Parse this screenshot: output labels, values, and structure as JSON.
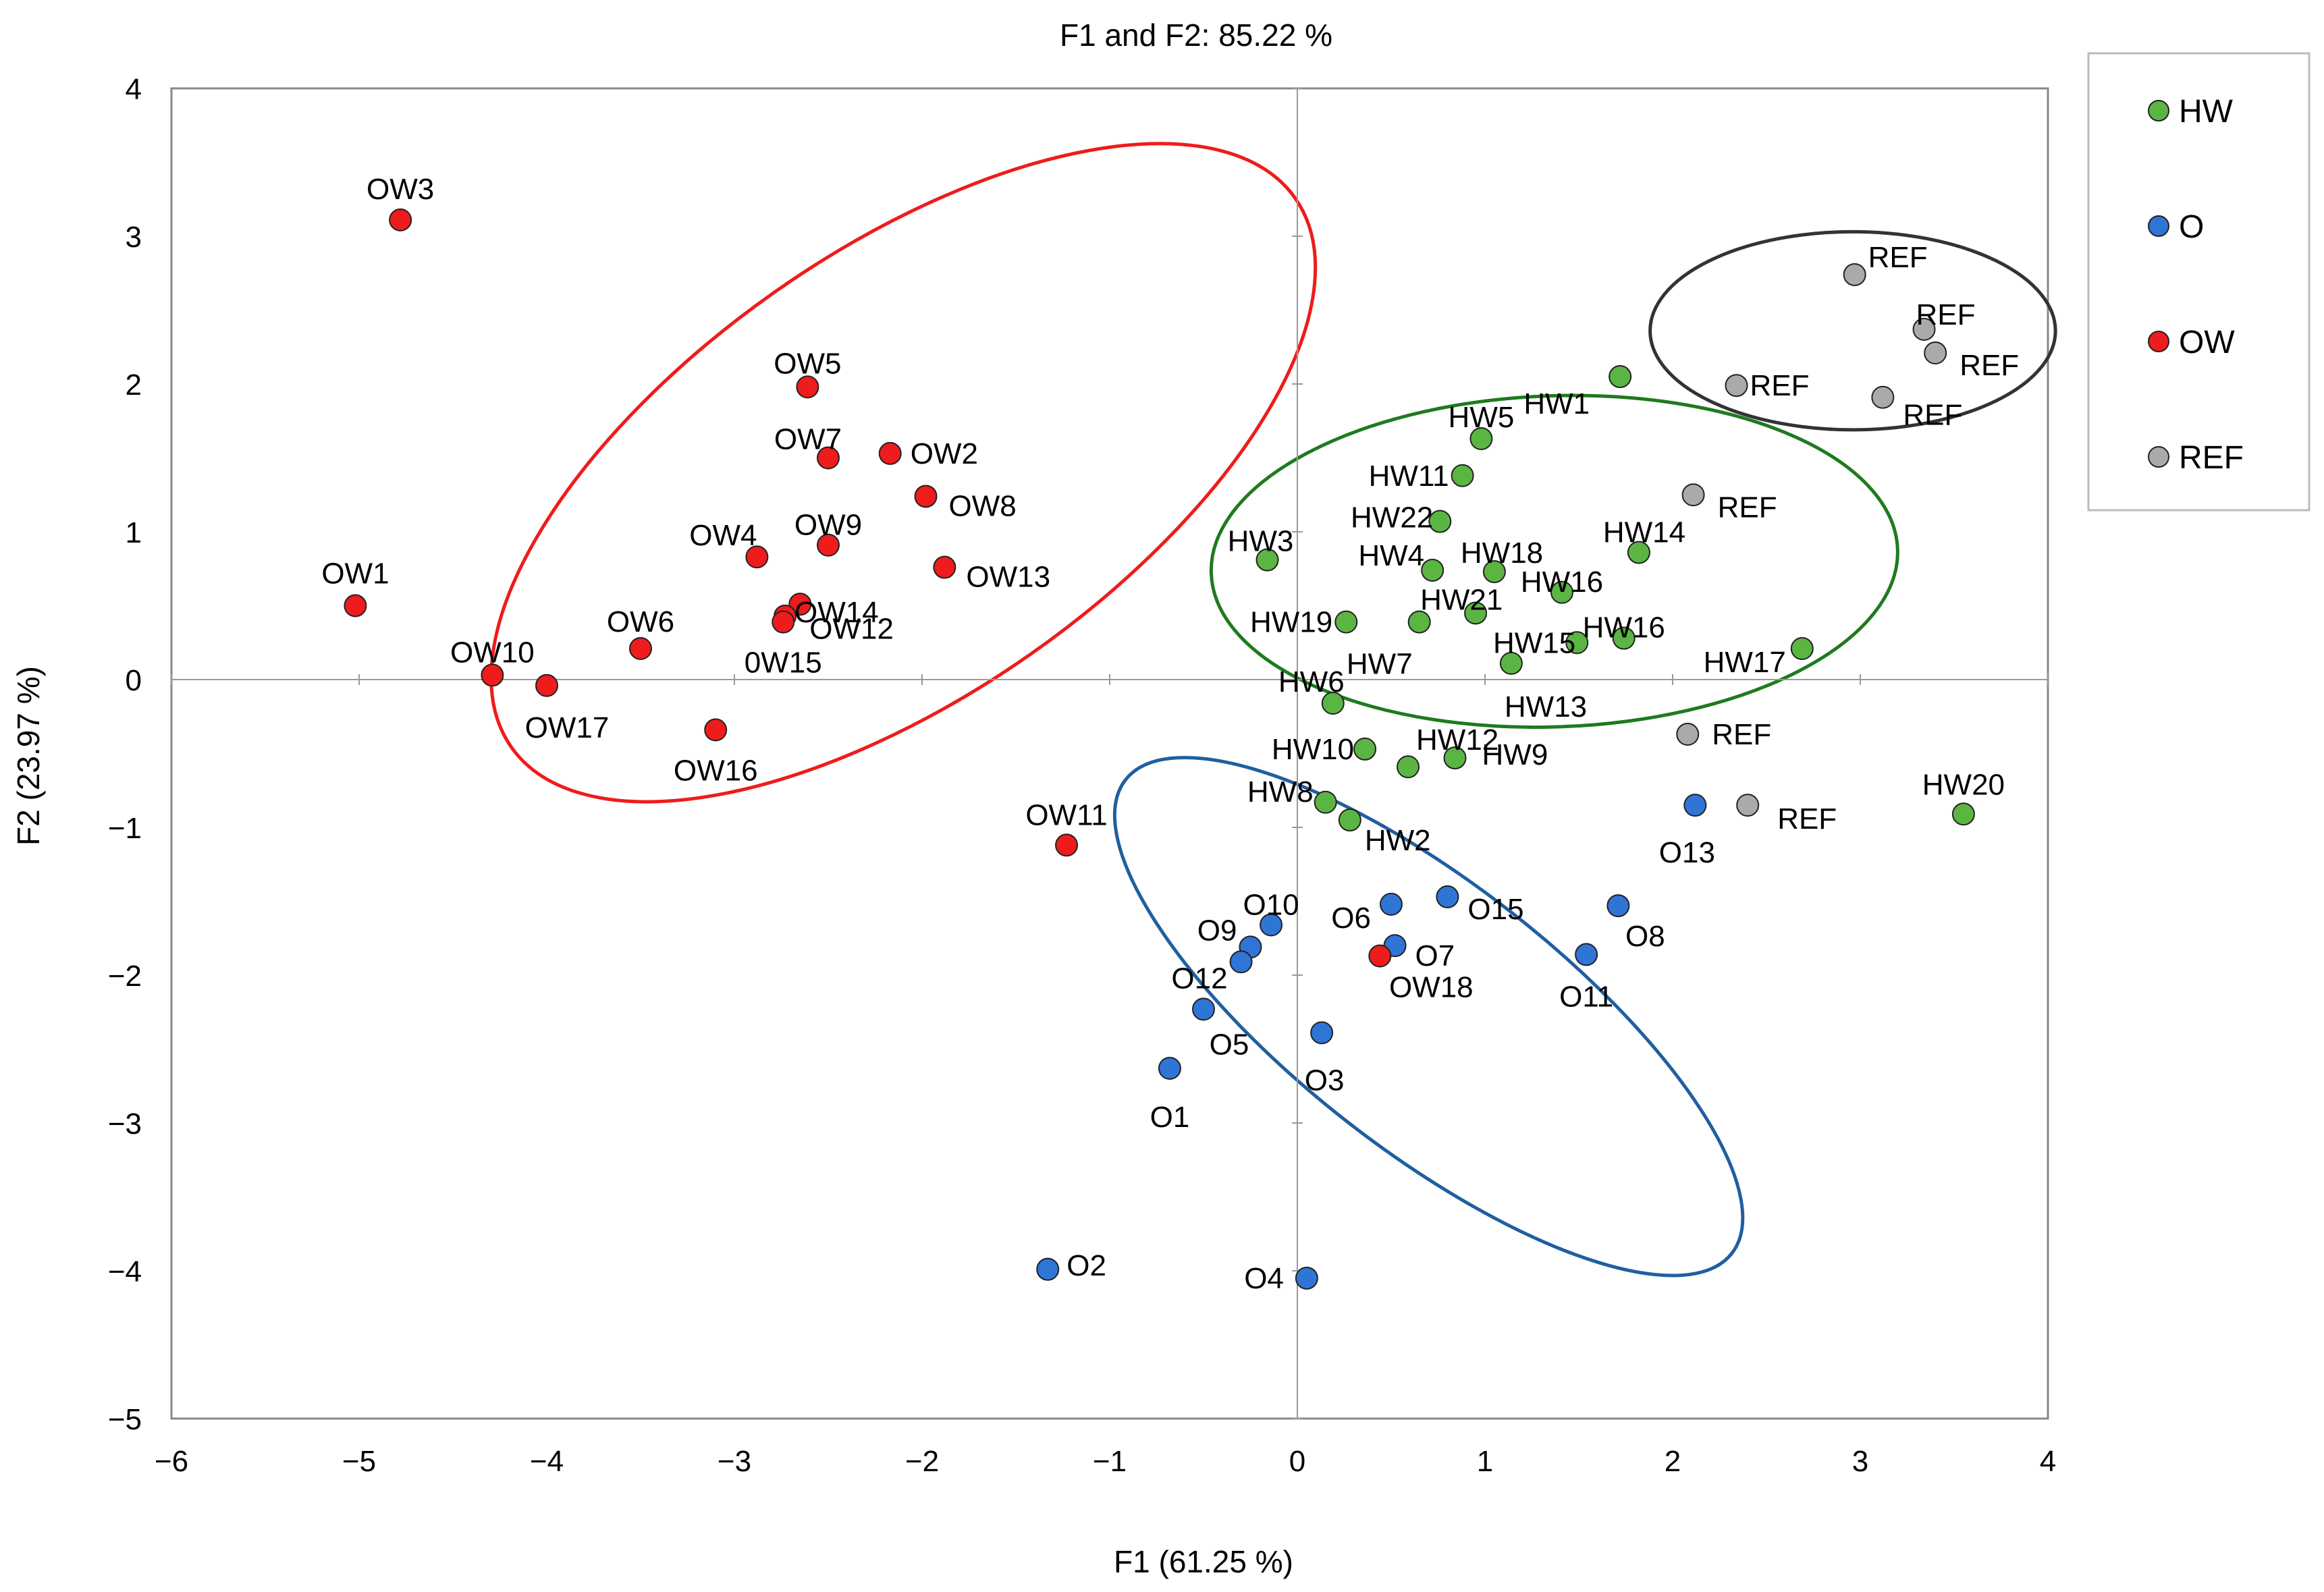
{
  "chart_data": {
    "type": "scatter",
    "title": "F1 and F2: 85.22 %",
    "xlabel": "F1 (61.25 %)",
    "ylabel": "F2 (23.97 %)",
    "xlim": [
      -6,
      4
    ],
    "ylim": [
      -5,
      4
    ],
    "xticks": [
      -6,
      -5,
      -4,
      -3,
      -2,
      -1,
      0,
      1,
      2,
      3,
      4
    ],
    "yticks": [
      -5,
      -4,
      -3,
      -2,
      -1,
      0,
      1,
      2,
      3,
      4
    ],
    "xtick_labels": [
      "−6",
      "−5",
      "−4",
      "−3",
      "−2",
      "−1",
      "0",
      "1",
      "2",
      "3",
      "4"
    ],
    "ytick_labels": [
      "−5",
      "−4",
      "−3",
      "−2",
      "−1",
      "0",
      "1",
      "2",
      "3",
      "4"
    ],
    "grid": false,
    "legend_position": "right",
    "series": [
      {
        "name": "HW",
        "color": "#5BB543",
        "points": [
          {
            "label": "HW1",
            "x": 1.72,
            "y": 2.05
          },
          {
            "label": "HW2",
            "x": 0.28,
            "y": -0.95
          },
          {
            "label": "HW3",
            "x": -0.16,
            "y": 0.81
          },
          {
            "label": "HW4",
            "x": 0.72,
            "y": 0.74
          },
          {
            "label": "HW5",
            "x": 0.98,
            "y": 1.63
          },
          {
            "label": "HW6",
            "x": 0.19,
            "y": -0.16
          },
          {
            "label": "HW7",
            "x": 0.65,
            "y": 0.39
          },
          {
            "label": "HW8",
            "x": 0.15,
            "y": -0.83
          },
          {
            "label": "HW9",
            "x": 0.84,
            "y": -0.53
          },
          {
            "label": "HW10",
            "x": 0.36,
            "y": -0.47
          },
          {
            "label": "HW11",
            "x": 0.88,
            "y": 1.38
          },
          {
            "label": "HW12",
            "x": 0.59,
            "y": -0.59
          },
          {
            "label": "HW13",
            "x": 1.14,
            "y": 0.11
          },
          {
            "label": "HW14",
            "x": 1.82,
            "y": 0.86
          },
          {
            "label": "HW15",
            "x": 1.49,
            "y": 0.25
          },
          {
            "label": "HW16",
            "x": 1.41,
            "y": 0.59
          },
          {
            "label": "HW16",
            "x": 1.74,
            "y": 0.28
          },
          {
            "label": "HW17",
            "x": 2.69,
            "y": 0.21
          },
          {
            "label": "HW18",
            "x": 1.05,
            "y": 0.73
          },
          {
            "label": "HW19",
            "x": 0.26,
            "y": 0.39
          },
          {
            "label": "HW20",
            "x": 3.55,
            "y": -0.91
          },
          {
            "label": "HW21",
            "x": 0.95,
            "y": 0.45
          },
          {
            "label": "HW22",
            "x": 0.76,
            "y": 1.07
          }
        ]
      },
      {
        "name": "O",
        "color": "#2E75D6",
        "points": [
          {
            "label": "O1",
            "x": -0.68,
            "y": -2.63
          },
          {
            "label": "O2",
            "x": -1.33,
            "y": -3.99
          },
          {
            "label": "O3",
            "x": 0.13,
            "y": -2.39
          },
          {
            "label": "O4",
            "x": 0.05,
            "y": -4.05
          },
          {
            "label": "O5",
            "x": -0.5,
            "y": -2.23
          },
          {
            "label": "O6",
            "x": 0.5,
            "y": -1.52
          },
          {
            "label": "O7",
            "x": 0.52,
            "y": -1.8
          },
          {
            "label": "O8",
            "x": 1.71,
            "y": -1.53
          },
          {
            "label": "O9",
            "x": -0.25,
            "y": -1.81
          },
          {
            "label": "O10",
            "x": -0.14,
            "y": -1.66
          },
          {
            "label": "O11",
            "x": 1.54,
            "y": -1.86
          },
          {
            "label": "O12",
            "x": -0.3,
            "y": -1.91
          },
          {
            "label": "O13",
            "x": 2.12,
            "y": -0.85
          },
          {
            "label": "O15",
            "x": 0.8,
            "y": -1.47
          }
        ]
      },
      {
        "name": "OW",
        "color": "#EE1C1C",
        "points": [
          {
            "label": "OW1",
            "x": -5.02,
            "y": 0.5
          },
          {
            "label": "OW2",
            "x": -2.17,
            "y": 1.53
          },
          {
            "label": "OW3",
            "x": -4.78,
            "y": 3.11
          },
          {
            "label": "OW4",
            "x": -2.88,
            "y": 0.83
          },
          {
            "label": "OW5",
            "x": -2.61,
            "y": 1.98
          },
          {
            "label": "OW6",
            "x": -3.5,
            "y": 0.21
          },
          {
            "label": "OW7",
            "x": -2.5,
            "y": 1.5
          },
          {
            "label": "OW8",
            "x": -1.98,
            "y": 1.24
          },
          {
            "label": "OW9",
            "x": -2.5,
            "y": 0.91
          },
          {
            "label": "OW10",
            "x": -4.29,
            "y": 0.03
          },
          {
            "label": "OW11",
            "x": -1.23,
            "y": -1.12
          },
          {
            "label": "OW12",
            "x": -2.65,
            "y": 0.51
          },
          {
            "label": "OW13",
            "x": -1.88,
            "y": 0.76
          },
          {
            "label": "OW14",
            "x": -2.73,
            "y": 0.43
          },
          {
            "label": "0W15",
            "x": -2.74,
            "y": 0.39
          },
          {
            "label": "OW16",
            "x": -3.1,
            "y": -0.34
          },
          {
            "label": "OW17",
            "x": -4.0,
            "y": -0.04
          },
          {
            "label": "OW18",
            "x": 0.44,
            "y": -1.87
          }
        ]
      },
      {
        "name": "REF",
        "color": "#AAAAAA",
        "points": [
          {
            "label": "REF",
            "x": 2.97,
            "y": 2.74
          },
          {
            "label": "REF",
            "x": 3.34,
            "y": 2.37
          },
          {
            "label": "REF",
            "x": 3.4,
            "y": 2.21
          },
          {
            "label": "REF",
            "x": 2.34,
            "y": 1.99
          },
          {
            "label": "REF",
            "x": 3.12,
            "y": 1.91
          },
          {
            "label": "REF",
            "x": 2.11,
            "y": 1.25
          },
          {
            "label": "REF",
            "x": 2.08,
            "y": -0.37
          },
          {
            "label": "REF",
            "x": 2.4,
            "y": -0.85
          }
        ]
      }
    ],
    "groups": [
      {
        "name": "OW",
        "color": "#EE1C1C",
        "center": [
          -2.1,
          1.4
        ],
        "rx": 2.55,
        "ry": 1.5,
        "angle_deg": -35
      },
      {
        "name": "HW",
        "color": "#1F7A1F",
        "center": [
          1.37,
          0.8
        ],
        "rx": 1.83,
        "ry": 1.12,
        "angle_deg": -2
      },
      {
        "name": "O",
        "color": "#1F5FA0",
        "center": [
          0.7,
          -2.28
        ],
        "rx": 2.05,
        "ry": 0.9,
        "angle_deg": 38
      },
      {
        "name": "REF",
        "color": "#333333",
        "center": [
          2.96,
          2.36
        ],
        "rx": 1.08,
        "ry": 0.67,
        "angle_deg": 0
      }
    ]
  },
  "legend": [
    {
      "name": "HW",
      "color": "#5BB543"
    },
    {
      "name": "O",
      "color": "#2E75D6"
    },
    {
      "name": "OW",
      "color": "#EE1C1C"
    },
    {
      "name": "REF",
      "color": "#AAAAAA"
    }
  ]
}
